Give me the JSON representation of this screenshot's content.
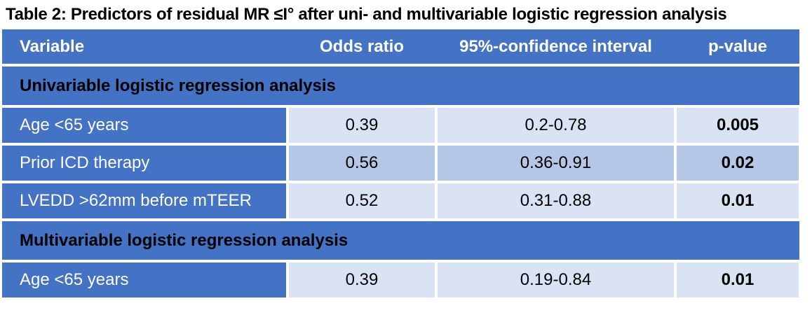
{
  "title": "Table 2: Predictors of residual MR ≤I° after uni- and multivariable logistic regression analysis",
  "table": {
    "headers": [
      "Variable",
      "Odds ratio",
      "95%-confidence interval",
      "p-value"
    ],
    "sections": [
      {
        "label": "Univariable logistic regression analysis",
        "rows": [
          {
            "variable": "Age <65 years",
            "odds_ratio": "0.39",
            "ci": "0.2-0.78",
            "p_value": "0.005"
          },
          {
            "variable": "Prior ICD therapy",
            "odds_ratio": "0.56",
            "ci": "0.36-0.91",
            "p_value": "0.02"
          },
          {
            "variable": "LVEDD >62mm before mTEER",
            "odds_ratio": "0.52",
            "ci": "0.31-0.88",
            "p_value": "0.01"
          }
        ]
      },
      {
        "label": "Multivariable logistic regression analysis",
        "rows": [
          {
            "variable": "Age <65 years",
            "odds_ratio": "0.39",
            "ci": "0.19-0.84",
            "p_value": "0.01"
          }
        ]
      }
    ]
  },
  "colors": {
    "header_blue": "#4472C4",
    "row_light": "#DAE3F3",
    "row_banded": "#B4C7E7",
    "header_text": "#FFFFFF",
    "section_text": "#000000"
  }
}
